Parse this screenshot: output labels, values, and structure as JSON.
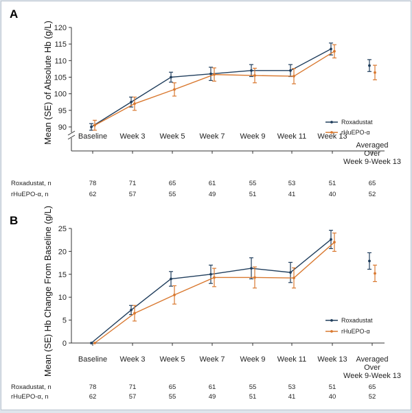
{
  "colors": {
    "roxadustat": "#1f3d5c",
    "rhuepo": "#d9782f",
    "axis": "#333333"
  },
  "chart_data": [
    {
      "type": "line",
      "panel_label": "A",
      "ylabel": "Mean (SE) of Absolute Hb (g/L)",
      "ylim": [
        90,
        120
      ],
      "yticks": [
        "120",
        "115",
        "110",
        "105",
        "100",
        "95",
        "90"
      ],
      "ytick_values": [
        120,
        115,
        110,
        105,
        100,
        95,
        90
      ],
      "axis_break": true,
      "categories": [
        "Baseline",
        "Week 3",
        "Week 5",
        "Week 7",
        "Week 9",
        "Week 11",
        "Week 13"
      ],
      "extra_category": [
        "Averaged",
        "Over",
        "Week 9-Week 13"
      ],
      "series": [
        {
          "name": "Roxadustat",
          "values": [
            90.0,
            97.5,
            105.0,
            106.0,
            107.0,
            107.0,
            113.5
          ],
          "se": [
            1.0,
            1.5,
            1.5,
            2.0,
            1.8,
            1.8,
            1.8
          ],
          "averaged": 108.5,
          "averaged_se": 1.8
        },
        {
          "name": "rHuEPO-α",
          "values": [
            90.5,
            97.0,
            101.3,
            105.8,
            105.5,
            105.3,
            112.8
          ],
          "se": [
            1.5,
            2.0,
            2.0,
            2.0,
            2.2,
            2.3,
            2.0
          ],
          "averaged": 106.4,
          "averaged_se": 2.2
        }
      ],
      "n_rows": [
        {
          "label": "Roxadustat, n",
          "values": [
            "78",
            "71",
            "65",
            "61",
            "55",
            "53",
            "51",
            "65"
          ]
        },
        {
          "label": "rHuEPO-α, n",
          "values": [
            "62",
            "57",
            "55",
            "49",
            "51",
            "41",
            "40",
            "52"
          ]
        }
      ]
    },
    {
      "type": "line",
      "panel_label": "B",
      "ylabel": "Mean (SE) Hb Change From Baseline (g/L)",
      "ylim": [
        0,
        25
      ],
      "yticks": [
        "25",
        "20",
        "15",
        "10",
        "5",
        "0"
      ],
      "ytick_values": [
        25,
        20,
        15,
        10,
        5,
        0
      ],
      "axis_break": false,
      "categories": [
        "Baseline",
        "Week 3",
        "Week 5",
        "Week 7",
        "Week 9",
        "Week 11",
        "Week 13"
      ],
      "extra_category": [
        "Averaged",
        "Over",
        "Week 9-Week 13"
      ],
      "series": [
        {
          "name": "Roxadustat",
          "values": [
            0,
            7.2,
            14.0,
            15.0,
            16.3,
            15.4,
            22.6
          ],
          "se": [
            0,
            1.0,
            1.6,
            2.0,
            2.3,
            2.2,
            2.0
          ],
          "averaged": 17.9,
          "averaged_se": 1.8
        },
        {
          "name": "rHuEPO-α",
          "values": [
            0,
            6.5,
            10.5,
            14.3,
            14.3,
            14.2,
            22.0
          ],
          "se": [
            0,
            1.7,
            2.0,
            2.0,
            2.3,
            2.2,
            2.0
          ],
          "averaged": 15.2,
          "averaged_se": 1.8
        }
      ],
      "n_rows": [
        {
          "label": "Roxadustat, n",
          "values": [
            "78",
            "71",
            "65",
            "61",
            "55",
            "53",
            "51",
            "65"
          ]
        },
        {
          "label": "rHuEPO-α, n",
          "values": [
            "62",
            "57",
            "55",
            "49",
            "51",
            "41",
            "40",
            "52"
          ]
        }
      ]
    }
  ]
}
